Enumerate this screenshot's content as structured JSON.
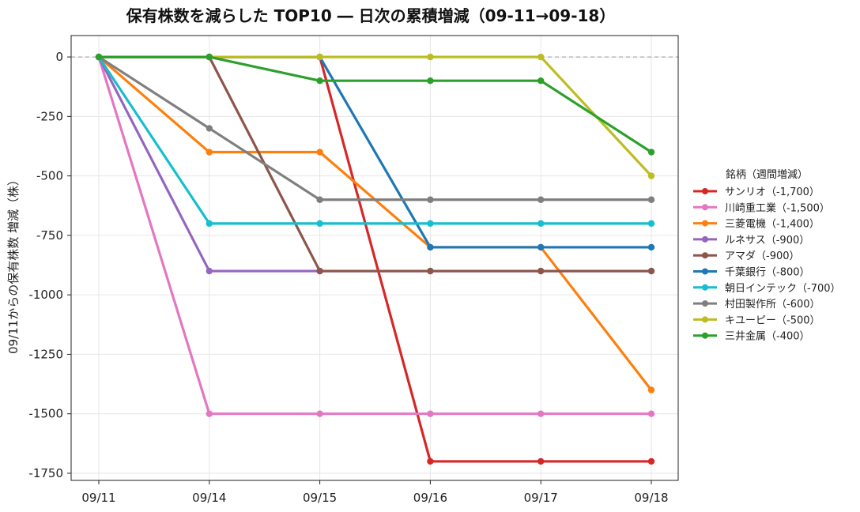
{
  "chart_data": {
    "type": "line",
    "title": "保有株数を減らした TOP10 ― 日次の累積増減（09-11→09-18）",
    "xlabel": "",
    "ylabel": "09/11からの保有株数 増減（株）",
    "x": [
      "09/11",
      "09/14",
      "09/15",
      "09/16",
      "09/17",
      "09/18"
    ],
    "ylim": [
      -1780,
      90
    ],
    "yticks": [
      0,
      -250,
      -500,
      -750,
      -1000,
      -1250,
      -1500,
      -1750
    ],
    "ytick_labels": [
      "0",
      "-250",
      "-500",
      "-750",
      "-1000",
      "-1250",
      "-1500",
      "-1750"
    ],
    "grid": true,
    "zero_line": "dashed",
    "legend_title": "銘柄（週間増減）",
    "legend_position": "right",
    "series": [
      {
        "name": "サンリオ（-1,700）",
        "color": "#d62728",
        "values": [
          0,
          0,
          0,
          -1700,
          -1700,
          -1700
        ]
      },
      {
        "name": "川崎重工業（-1,500）",
        "color": "#e377c2",
        "values": [
          0,
          -1500,
          -1500,
          -1500,
          -1500,
          -1500
        ]
      },
      {
        "name": "三菱電機（-1,400）",
        "color": "#ff7f0e",
        "values": [
          0,
          -400,
          -400,
          -800,
          -800,
          -1400
        ]
      },
      {
        "name": "ルネサス（-900）",
        "color": "#9467bd",
        "values": [
          0,
          -900,
          -900,
          -900,
          -900,
          -900
        ]
      },
      {
        "name": "アマダ（-900）",
        "color": "#8c564b",
        "values": [
          0,
          0,
          -900,
          -900,
          -900,
          -900
        ]
      },
      {
        "name": "千葉銀行（-800）",
        "color": "#1f77b4",
        "values": [
          0,
          0,
          0,
          -800,
          -800,
          -800
        ]
      },
      {
        "name": "朝日インテック（-700）",
        "color": "#17becf",
        "values": [
          0,
          -700,
          -700,
          -700,
          -700,
          -700
        ]
      },
      {
        "name": "村田製作所（-600）",
        "color": "#7f7f7f",
        "values": [
          0,
          -300,
          -600,
          -600,
          -600,
          -600
        ]
      },
      {
        "name": "キユーピー（-500）",
        "color": "#bcbd22",
        "values": [
          0,
          0,
          0,
          0,
          0,
          -500
        ]
      },
      {
        "name": "三井金属（-400）",
        "color": "#2ca02c",
        "values": [
          0,
          0,
          -100,
          -100,
          -100,
          -400
        ]
      }
    ]
  }
}
